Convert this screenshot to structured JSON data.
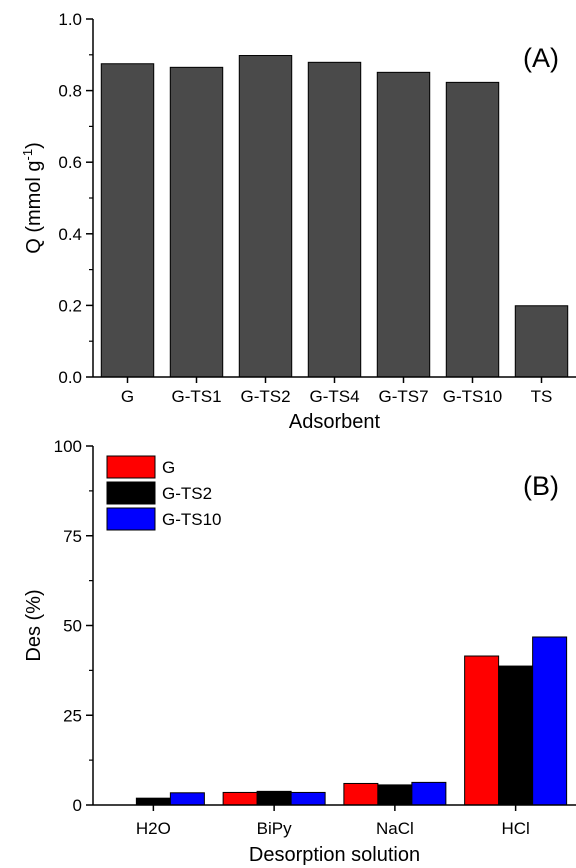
{
  "chart_data": [
    {
      "type": "bar",
      "panel_label": "(A)",
      "categories": [
        "G",
        "G-TS1",
        "G-TS2",
        "G-TS4",
        "G-TS7",
        "G-TS10",
        "TS"
      ],
      "values": [
        0.875,
        0.865,
        0.898,
        0.879,
        0.851,
        0.823,
        0.199
      ],
      "bar_color": "#4a4a4a",
      "xlabel": "Adsorbent",
      "ylabel": "Q (mmol g",
      "ylabel_superscript": "-1",
      "ylabel_suffix": ")",
      "ylim": [
        0,
        1.0
      ],
      "yticks": [
        "0.0",
        "0.2",
        "0.4",
        "0.6",
        "0.8",
        "1.0"
      ],
      "grid": false
    },
    {
      "type": "bar",
      "panel_label": "(B)",
      "categories": [
        "H2O",
        "BiPy",
        "NaCl",
        "HCl"
      ],
      "series": [
        {
          "name": "G",
          "color": "#ff0000",
          "values": [
            0,
            3.5,
            6.0,
            41.5
          ]
        },
        {
          "name": "G-TS2",
          "color": "#000000",
          "values": [
            1.9,
            3.8,
            5.6,
            38.7
          ]
        },
        {
          "name": "G-TS10",
          "color": "#0000ff",
          "values": [
            3.4,
            3.5,
            6.3,
            46.8
          ]
        }
      ],
      "xlabel": "Desorption solution",
      "ylabel": "Des (%)",
      "ylim": [
        0,
        100
      ],
      "yticks": [
        "0",
        "25",
        "50",
        "75",
        "100"
      ],
      "legend_position": "top-left",
      "grid": false
    }
  ]
}
